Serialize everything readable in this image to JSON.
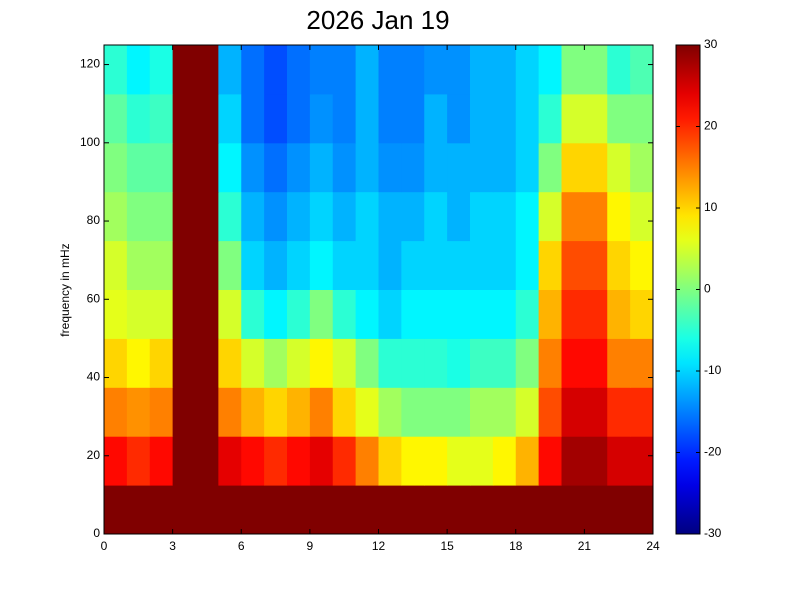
{
  "chart_data": {
    "type": "heatmap",
    "title": "2026 Jan 19",
    "y_label": "frequency in mHz",
    "xlim": [
      0,
      24
    ],
    "xticks": [
      0,
      3,
      6,
      9,
      12,
      15,
      18,
      21,
      24
    ],
    "ylim": [
      0,
      125
    ],
    "yticks": [
      0,
      20,
      40,
      60,
      80,
      100,
      120
    ],
    "clim": [
      -30,
      30
    ],
    "colorbar_ticks": [
      -30,
      -20,
      -10,
      0,
      10,
      20,
      30
    ],
    "colormap": "jet",
    "z": [
      [
        30,
        30,
        30,
        30,
        30,
        30,
        30,
        30,
        30,
        30,
        30,
        30,
        30,
        30,
        30,
        30,
        30,
        30,
        30,
        30,
        30,
        30,
        30,
        30
      ],
      [
        22,
        20,
        22,
        30,
        30,
        24,
        22,
        20,
        22,
        24,
        20,
        15,
        10,
        8,
        8,
        6,
        6,
        8,
        12,
        22,
        28,
        28,
        25,
        25
      ],
      [
        15,
        14,
        15,
        30,
        30,
        15,
        12,
        10,
        12,
        15,
        10,
        6,
        2,
        0,
        0,
        0,
        2,
        2,
        5,
        18,
        25,
        25,
        20,
        20
      ],
      [
        10,
        8,
        10,
        30,
        30,
        10,
        5,
        2,
        5,
        8,
        5,
        0,
        -5,
        -5,
        -5,
        -6,
        -4,
        -4,
        0,
        15,
        22,
        22,
        15,
        15
      ],
      [
        6,
        5,
        5,
        30,
        30,
        5,
        -5,
        -8,
        -5,
        0,
        -5,
        -8,
        -10,
        -8,
        -8,
        -8,
        -8,
        -8,
        -5,
        12,
        20,
        20,
        12,
        10
      ],
      [
        5,
        2,
        2,
        30,
        30,
        0,
        -10,
        -12,
        -10,
        -8,
        -10,
        -10,
        -12,
        -10,
        -10,
        -10,
        -10,
        -10,
        -8,
        10,
        18,
        18,
        10,
        8
      ],
      [
        2,
        0,
        0,
        30,
        30,
        -5,
        -12,
        -14,
        -12,
        -10,
        -12,
        -10,
        -12,
        -12,
        -10,
        -12,
        -10,
        -10,
        -8,
        5,
        15,
        15,
        8,
        5
      ],
      [
        0,
        -2,
        -2,
        30,
        30,
        -8,
        -14,
        -16,
        -14,
        -12,
        -14,
        -12,
        -14,
        -14,
        -12,
        -12,
        -12,
        -12,
        -10,
        0,
        10,
        10,
        5,
        2
      ],
      [
        -2,
        -5,
        -4,
        30,
        30,
        -10,
        -16,
        -18,
        -16,
        -14,
        -15,
        -12,
        -15,
        -15,
        -12,
        -14,
        -12,
        -12,
        -10,
        -5,
        5,
        5,
        0,
        0
      ],
      [
        -5,
        -8,
        -6,
        30,
        30,
        -12,
        -16,
        -18,
        -16,
        -15,
        -15,
        -12,
        -15,
        -15,
        -14,
        -14,
        -12,
        -12,
        -10,
        -8,
        0,
        0,
        -5,
        -3
      ]
    ]
  }
}
